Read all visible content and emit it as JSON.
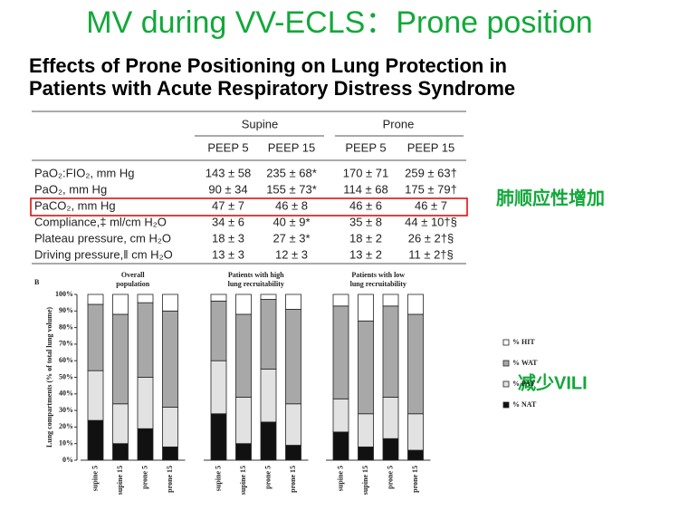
{
  "title": "MV during VV-ECLS：Prone position",
  "subtitle": [
    "Effects of Prone Positioning on Lung Protection in",
    "Patients with Acute Respiratory Distress Syndrome"
  ],
  "table": {
    "groups": [
      "Supine",
      "Prone"
    ],
    "columns": [
      "PEEP 5",
      "PEEP 15",
      "PEEP 5",
      "PEEP 15"
    ],
    "rows": [
      [
        "PaO₂:FIO₂, mm Hg",
        "143 ± 58",
        "235 ± 68*",
        "170 ± 71",
        "259 ± 63†"
      ],
      [
        "PaO₂, mm Hg",
        "90 ± 34",
        "155 ± 73*",
        "114 ± 68",
        "175 ± 79†"
      ],
      [
        "PaCO₂, mm Hg",
        "47 ± 7",
        "46 ± 8",
        "46 ± 6",
        "46 ± 7"
      ],
      [
        "Compliance,‡ ml/cm H₂O",
        "34 ± 6",
        "40 ± 9*",
        "35 ± 8",
        "44 ± 10†§"
      ],
      [
        "Plateau pressure, cm H₂O",
        "18 ± 3",
        "27 ± 3*",
        "18 ± 2",
        "26 ± 2†§"
      ],
      [
        "Driving pressure,‖ cm H₂O",
        "13 ± 3",
        "12 ± 3",
        "13 ± 2",
        "11 ± 2†§"
      ]
    ]
  },
  "notes": [
    "肺顺应性增加",
    "减少VILI"
  ],
  "chart_data": {
    "type": "stacked_bar",
    "panel": "B",
    "ylabel": "Lung compartments (% of total lung volume)",
    "ylim": [
      0,
      100
    ],
    "yticks": [
      {
        "value": 0,
        "label": "0%"
      },
      {
        "value": 10,
        "label": "10%"
      },
      {
        "value": 20,
        "label": "20%"
      },
      {
        "value": 30,
        "label": "30%"
      },
      {
        "value": 40,
        "label": "40%"
      },
      {
        "value": 50,
        "label": "50%"
      },
      {
        "value": 60,
        "label": "60%"
      },
      {
        "value": 70,
        "label": "70%"
      },
      {
        "value": 80,
        "label": "80%"
      },
      {
        "value": 90,
        "label": "90%"
      },
      {
        "value": 100,
        "label": "100%"
      }
    ],
    "series": [
      {
        "name": "% NAT",
        "color": "#111111"
      },
      {
        "name": "% PAT",
        "color": "#e2e2e2"
      },
      {
        "name": "% WAT",
        "color": "#a8a8a8"
      },
      {
        "name": "% HIT",
        "color": "#ffffff"
      }
    ],
    "groups": [
      {
        "title": [
          "Overall",
          "population"
        ],
        "categories": [
          "supine 5",
          "supine 15",
          "prone 5",
          "prone 15"
        ],
        "values": [
          [
            24,
            10,
            19,
            8
          ],
          [
            30,
            24,
            31,
            24
          ],
          [
            40,
            54,
            45,
            58
          ],
          [
            6,
            12,
            5,
            10
          ]
        ]
      },
      {
        "title": [
          "Patients with high",
          "lung recruitability"
        ],
        "categories": [
          "supine 5",
          "supine 15",
          "prone 5",
          "prone 15"
        ],
        "values": [
          [
            28,
            10,
            23,
            9
          ],
          [
            32,
            28,
            32,
            25
          ],
          [
            36,
            50,
            42,
            57
          ],
          [
            4,
            12,
            3,
            9
          ]
        ]
      },
      {
        "title": [
          "Patients with low",
          "lung recruitability"
        ],
        "categories": [
          "supine 5",
          "supine 15",
          "prone 5",
          "prone 15"
        ],
        "values": [
          [
            17,
            8,
            13,
            6
          ],
          [
            20,
            20,
            25,
            22
          ],
          [
            56,
            56,
            55,
            60
          ],
          [
            7,
            16,
            7,
            12
          ]
        ]
      }
    ]
  }
}
